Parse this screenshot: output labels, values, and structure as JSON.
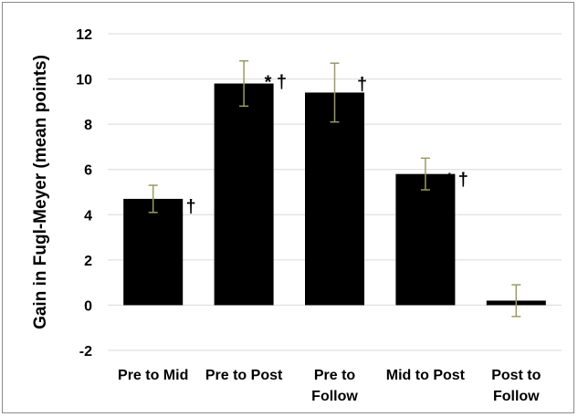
{
  "chart_data": {
    "type": "bar",
    "title": "",
    "xlabel": "",
    "ylabel": "Gain in Fugl-Meyer (mean points)",
    "ylim": [
      -2,
      12
    ],
    "yticks": [
      -2,
      0,
      2,
      4,
      6,
      8,
      10,
      12
    ],
    "grid": true,
    "legend": "none",
    "categories": [
      [
        "Pre to Mid"
      ],
      [
        "Pre to Post"
      ],
      [
        "Pre to",
        "Follow"
      ],
      [
        "Mid to Post"
      ],
      [
        "Post to",
        "Follow"
      ]
    ],
    "values": [
      4.7,
      9.8,
      9.4,
      5.8,
      0.2
    ],
    "error_bars": [
      0.6,
      1.0,
      1.3,
      0.7,
      0.7
    ],
    "annotations": [
      "* †",
      "* †",
      "†",
      "* †",
      ""
    ],
    "bar_color": "#000000",
    "error_bar_color": "#9a9a66",
    "grid_color": "#d9d9d9"
  }
}
